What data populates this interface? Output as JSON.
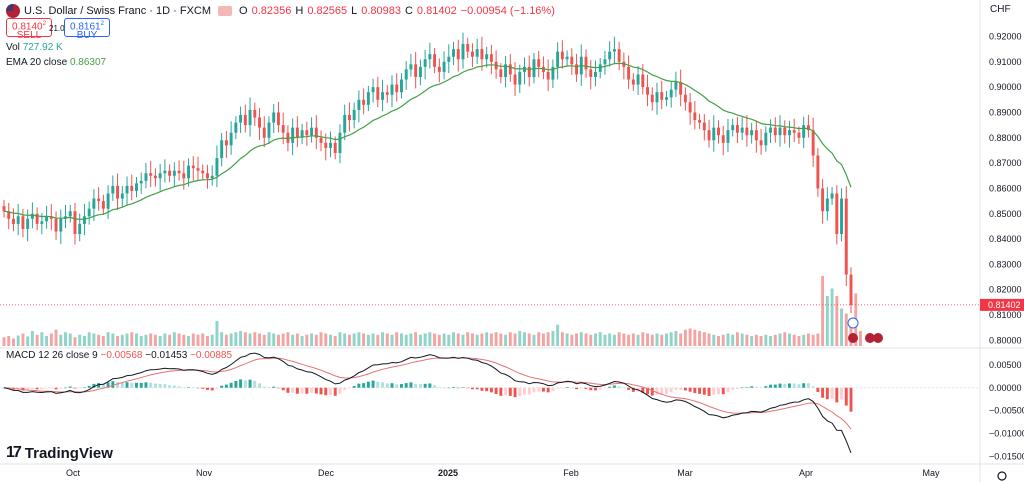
{
  "header": {
    "symbol_title": "U.S. Dollar / Swiss Franc · 1D · FXCM",
    "open_label": "O",
    "open": "0.82356",
    "high_label": "H",
    "high": "0.82565",
    "low_label": "L",
    "low": "0.80983",
    "close_label": "C",
    "close": "0.81402",
    "change": "−0.00954 (−1.16%)"
  },
  "trade": {
    "sell_price": "0.8140",
    "sell_sup": "2",
    "sell_label": "SELL",
    "spread": "21.0",
    "buy_price": "0.8161",
    "buy_sup": "2",
    "buy_label": "BUY"
  },
  "indicators": {
    "vol_label": "Vol",
    "vol_value": "727.92 K",
    "ema_label": "EMA 20 close",
    "ema_value": "0.86307",
    "macd_label": "MACD 12 26 close 9",
    "macd_values": [
      "−0.00568",
      "−0.01453",
      "−0.00885"
    ]
  },
  "currency": "CHF",
  "brand": "TradingView",
  "colors": {
    "up": "#26a69a",
    "down": "#ef5350",
    "ema": "#43a047",
    "vol_up": "#8fd3c9",
    "vol_down": "#f4a3a3",
    "macd_line": "#131722",
    "signal_line": "#e57373",
    "price_tag": "#f23645"
  },
  "chart_data": [
    {
      "type": "candlestick",
      "title": "U.S. Dollar / Swiss Franc · 1D · FXCM",
      "ylim": [
        0.797,
        0.9265
      ],
      "y_ticks": [
        0.92,
        0.91,
        0.9,
        0.89,
        0.88,
        0.87,
        0.86,
        0.85,
        0.84,
        0.83,
        0.82,
        0.81,
        0.8
      ],
      "y_tick_labels": [
        "0.92000",
        "0.91000",
        "0.90000",
        "0.89000",
        "0.88000",
        "0.87000",
        "0.86000",
        "0.85000",
        "0.84000",
        "0.83000",
        "0.82000",
        "0.81000",
        "0.80000"
      ],
      "x_labels": [
        "Oct",
        "Nov",
        "Dec",
        "2025",
        "Feb",
        "Mar",
        "Apr",
        "May"
      ],
      "last_price_label": "0.81402",
      "last_price": 0.81402,
      "close_series": [
        0.851,
        0.848,
        0.846,
        0.849,
        0.844,
        0.848,
        0.85,
        0.846,
        0.847,
        0.849,
        0.848,
        0.843,
        0.848,
        0.849,
        0.851,
        0.842,
        0.846,
        0.849,
        0.852,
        0.856,
        0.855,
        0.852,
        0.858,
        0.861,
        0.856,
        0.858,
        0.861,
        0.859,
        0.862,
        0.863,
        0.866,
        0.865,
        0.864,
        0.866,
        0.867,
        0.865,
        0.867,
        0.866,
        0.864,
        0.869,
        0.868,
        0.867,
        0.866,
        0.864,
        0.865,
        0.872,
        0.879,
        0.877,
        0.882,
        0.886,
        0.889,
        0.885,
        0.891,
        0.888,
        0.884,
        0.88,
        0.886,
        0.89,
        0.885,
        0.882,
        0.878,
        0.884,
        0.88,
        0.883,
        0.881,
        0.884,
        0.88,
        0.878,
        0.876,
        0.878,
        0.874,
        0.882,
        0.889,
        0.887,
        0.891,
        0.895,
        0.893,
        0.898,
        0.9,
        0.895,
        0.898,
        0.897,
        0.901,
        0.898,
        0.903,
        0.907,
        0.909,
        0.904,
        0.908,
        0.911,
        0.913,
        0.908,
        0.906,
        0.91,
        0.912,
        0.915,
        0.911,
        0.917,
        0.914,
        0.912,
        0.915,
        0.911,
        0.913,
        0.91,
        0.907,
        0.904,
        0.909,
        0.905,
        0.901,
        0.906,
        0.908,
        0.904,
        0.911,
        0.908,
        0.906,
        0.903,
        0.908,
        0.914,
        0.911,
        0.912,
        0.909,
        0.905,
        0.912,
        0.907,
        0.904,
        0.906,
        0.909,
        0.911,
        0.914,
        0.915,
        0.91,
        0.908,
        0.903,
        0.901,
        0.905,
        0.9,
        0.897,
        0.894,
        0.898,
        0.895,
        0.896,
        0.899,
        0.902,
        0.897,
        0.894,
        0.89,
        0.887,
        0.886,
        0.883,
        0.879,
        0.884,
        0.881,
        0.878,
        0.883,
        0.885,
        0.882,
        0.884,
        0.881,
        0.883,
        0.879,
        0.877,
        0.882,
        0.884,
        0.881,
        0.884,
        0.881,
        0.883,
        0.882,
        0.88,
        0.885,
        0.883,
        0.873,
        0.86,
        0.851,
        0.856,
        0.858,
        0.842,
        0.856,
        0.826,
        0.814
      ],
      "ema_series_label": "EMA 20 close",
      "ema_last": 0.86307,
      "volume_note": "last volume 727.92 K",
      "volume_series": [
        0.35,
        0.4,
        0.3,
        0.42,
        0.5,
        0.38,
        0.6,
        0.45,
        0.55,
        0.4,
        0.5,
        0.65,
        0.45,
        0.55,
        0.5,
        0.35,
        0.45,
        0.4,
        0.55,
        0.5,
        0.45,
        0.4,
        0.55,
        0.5,
        0.4,
        0.45,
        0.5,
        0.55,
        0.5,
        0.4,
        0.45,
        0.5,
        0.45,
        0.4,
        0.5,
        0.45,
        0.55,
        0.5,
        0.45,
        0.4,
        0.5,
        0.45,
        0.5,
        0.4,
        0.45,
        1.0,
        0.55,
        0.45,
        0.5,
        0.55,
        0.6,
        0.55,
        0.5,
        0.55,
        0.5,
        0.45,
        0.55,
        0.5,
        0.45,
        0.5,
        0.55,
        0.45,
        0.5,
        0.4,
        0.45,
        0.5,
        0.45,
        0.55,
        0.5,
        0.45,
        0.4,
        0.55,
        0.5,
        0.45,
        0.5,
        0.55,
        0.5,
        0.45,
        0.5,
        0.45,
        0.55,
        0.5,
        0.45,
        0.55,
        0.5,
        0.45,
        0.5,
        0.55,
        0.45,
        0.5,
        0.55,
        0.5,
        0.45,
        0.5,
        0.45,
        0.55,
        0.5,
        0.45,
        0.55,
        0.5,
        0.45,
        0.5,
        0.55,
        0.5,
        0.55,
        0.5,
        0.45,
        0.55,
        0.5,
        0.6,
        0.55,
        0.5,
        0.45,
        0.55,
        0.5,
        0.55,
        0.6,
        0.85,
        0.55,
        0.5,
        0.45,
        0.5,
        0.55,
        0.5,
        0.45,
        0.5,
        0.55,
        0.45,
        0.5,
        0.45,
        0.55,
        0.5,
        0.45,
        0.5,
        0.45,
        0.55,
        0.5,
        0.45,
        0.5,
        0.45,
        0.5,
        0.55,
        0.6,
        0.5,
        0.65,
        0.7,
        0.65,
        0.6,
        0.55,
        0.5,
        0.45,
        0.4,
        0.45,
        0.5,
        0.45,
        0.55,
        0.5,
        0.45,
        0.4,
        0.45,
        0.4,
        0.45,
        0.4,
        0.45,
        0.5,
        0.55,
        0.5,
        0.45,
        0.4,
        0.45,
        0.5,
        0.45,
        0.5,
        2.8,
        2.0,
        2.3,
        2.0,
        1.5,
        1.3,
        0.9,
        2.1,
        0.6
      ],
      "macd": {
        "label": "MACD 12 26 close 9",
        "values_label": [
          "−0.00568",
          "−0.01453",
          "−0.00885"
        ],
        "ylim": [
          -0.0162,
          0.0078
        ],
        "y_ticks": [
          0.005,
          0.0,
          -0.005,
          -0.01,
          -0.015
        ],
        "y_tick_labels": [
          "0.00500",
          "0.00000",
          "−0.00500",
          "−0.01000",
          "−0.01500"
        ],
        "last": {
          "histogram": -0.00568,
          "macd": -0.01453,
          "signal": -0.00885
        }
      }
    }
  ]
}
